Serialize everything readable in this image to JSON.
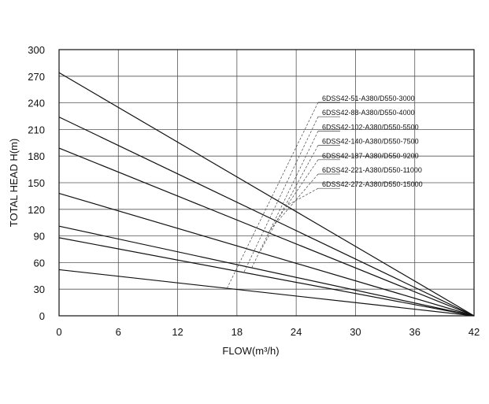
{
  "chart_data": {
    "type": "line",
    "xlabel": "FLOW(m³/h)",
    "ylabel": "TOTAL HEAD H(m)",
    "xlim": [
      0,
      42
    ],
    "ylim": [
      0,
      300
    ],
    "xticks": [
      0,
      6,
      12,
      18,
      24,
      30,
      36,
      42
    ],
    "yticks": [
      0,
      30,
      60,
      90,
      120,
      150,
      180,
      210,
      240,
      270,
      300
    ],
    "grid": true,
    "legend": "top-right (leader lines)",
    "series": [
      {
        "name": "6DSS42-51-A380/D550-3000",
        "x": [
          0,
          42
        ],
        "y": [
          52,
          0
        ]
      },
      {
        "name": "6DSS42-88-A380/D550-4000",
        "x": [
          0,
          42
        ],
        "y": [
          88,
          0
        ]
      },
      {
        "name": "6DSS42-102-A380/D550-5500",
        "x": [
          0,
          42
        ],
        "y": [
          101,
          0
        ]
      },
      {
        "name": "6DSS42-140-A380/D550-7500",
        "x": [
          0,
          42
        ],
        "y": [
          138,
          0
        ]
      },
      {
        "name": "6DSS42-187-A380/D550-9200",
        "x": [
          0,
          42
        ],
        "y": [
          189,
          0
        ]
      },
      {
        "name": "6DSS42-221-A380/D550-11000",
        "x": [
          0,
          42
        ],
        "y": [
          224,
          0
        ]
      },
      {
        "name": "6DSS42-272-A380/D550-15000",
        "x": [
          0,
          42
        ],
        "y": [
          274,
          0
        ]
      }
    ],
    "colors": {
      "line": "#111111",
      "grid": "#333333",
      "leader": "#444444"
    }
  }
}
